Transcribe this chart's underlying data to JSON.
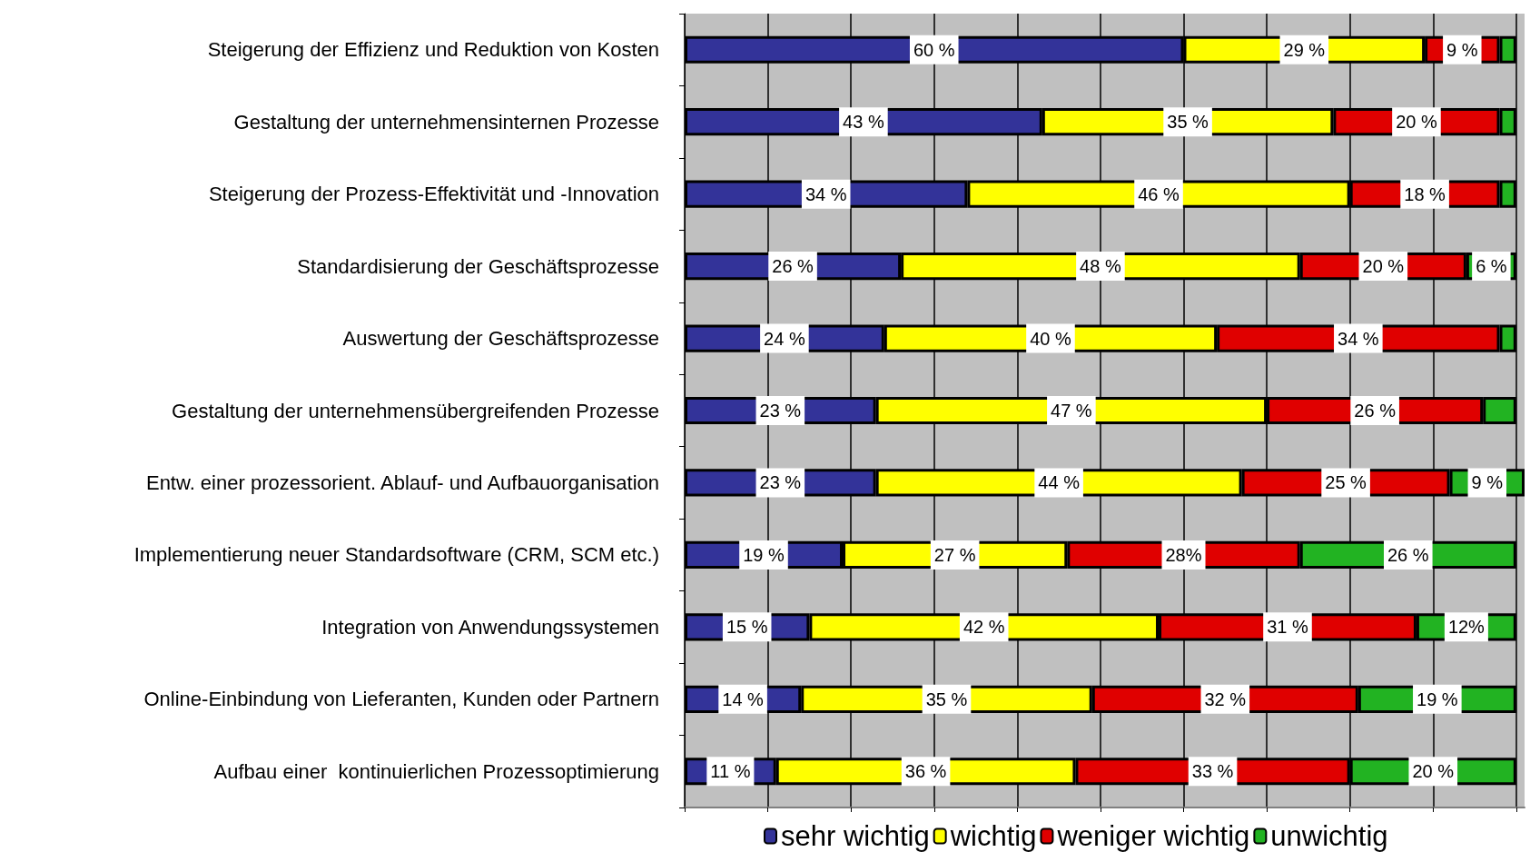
{
  "chart_data": {
    "type": "bar",
    "orientation": "horizontal",
    "stacked": true,
    "categories": [
      "Steigerung der Effizienz und Reduktion von Kosten",
      "Gestaltung der unternehmensinternen Prozesse",
      "Steigerung der Prozess-Effektivität und -Innovation",
      "Standardisierung der Geschäftsprozesse",
      "Auswertung der Geschäftsprozesse",
      "Gestaltung der unternehmensübergreifenden Prozesse",
      "Entw. einer prozessorient. Ablauf- und Aufbauorganisation",
      "Implementierung neuer Standardsoftware (CRM, SCM etc.)",
      "Integration von Anwendungssystemen",
      "Online-Einbindung von Lieferanten, Kunden oder Partnern",
      "Aufbau einer  kontinuierlichen Prozessoptimierung"
    ],
    "series": [
      {
        "name": "sehr wichtig",
        "color": "#333399",
        "values": [
          60,
          43,
          34,
          26,
          24,
          23,
          23,
          19,
          15,
          14,
          11
        ],
        "value_labels": [
          "60 %",
          "43 %",
          "34 %",
          "26 %",
          "24 %",
          "23 %",
          "23 %",
          "19 %",
          "15 %",
          "14 %",
          "11 %"
        ]
      },
      {
        "name": "wichtig",
        "color": "#ffff00",
        "values": [
          29,
          35,
          46,
          48,
          40,
          47,
          44,
          27,
          42,
          35,
          36
        ],
        "value_labels": [
          "29 %",
          "35 %",
          "46 %",
          "48 %",
          "40 %",
          "47 %",
          "44 %",
          "27 %",
          "42 %",
          "35 %",
          "36 %"
        ]
      },
      {
        "name": "weniger wichtig",
        "color": "#e00000",
        "values": [
          9,
          20,
          18,
          20,
          34,
          26,
          25,
          28,
          31,
          32,
          33
        ],
        "value_labels": [
          "9 %",
          "20 %",
          "18 %",
          "20 %",
          "34 %",
          "26 %",
          "25 %",
          "28%",
          "31 %",
          "32 %",
          "33 %"
        ]
      },
      {
        "name": "unwichtig",
        "color": "#22b322",
        "values": [
          2,
          2,
          2,
          6,
          2,
          4,
          9,
          26,
          12,
          19,
          20
        ],
        "value_labels": [
          null,
          null,
          null,
          "6 %",
          null,
          null,
          "9 %",
          "26 %",
          "12%",
          "19 %",
          "20 %"
        ]
      }
    ],
    "xlim": [
      0,
      101
    ],
    "xticks": [
      {
        "value": 0,
        "label": null
      },
      {
        "value": 10,
        "label": null
      },
      {
        "value": 20,
        "label": null
      },
      {
        "value": 30,
        "label": null
      },
      {
        "value": 40,
        "label": null
      },
      {
        "value": 50,
        "label": null
      },
      {
        "value": 60,
        "label": null
      },
      {
        "value": 70,
        "label": null
      },
      {
        "value": 80,
        "label": null
      },
      {
        "value": 90,
        "label": null
      },
      {
        "value": 100,
        "label": null
      }
    ],
    "grid": "x",
    "legend": "bottom",
    "tick_labels": "y"
  }
}
